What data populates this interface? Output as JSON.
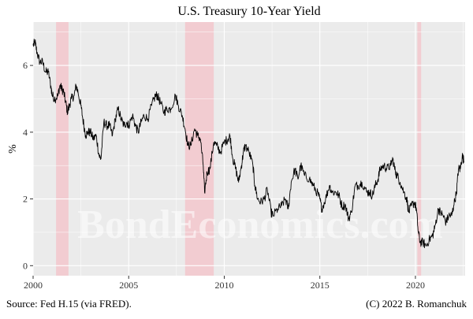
{
  "chart_data": {
    "type": "line",
    "title": "U.S. Treasury 10-Year Yield",
    "ylabel": "%",
    "xlabel": "",
    "xlim": [
      2000,
      2022.6
    ],
    "ylim": [
      -0.3,
      7.3
    ],
    "x_ticks": [
      2000,
      2005,
      2010,
      2015,
      2020
    ],
    "y_ticks": [
      0,
      2,
      4,
      6
    ],
    "grid": true,
    "watermark": "BondEconomics.com",
    "recessions": [
      {
        "start": 2001.2,
        "end": 2001.85
      },
      {
        "start": 2007.95,
        "end": 2009.45
      },
      {
        "start": 2020.1,
        "end": 2020.3
      }
    ],
    "series": [
      {
        "color": "#000000",
        "points": [
          [
            2000.0,
            6.6
          ],
          [
            2000.1,
            6.7
          ],
          [
            2000.2,
            6.4
          ],
          [
            2000.35,
            6.1
          ],
          [
            2000.5,
            6.1
          ],
          [
            2000.65,
            5.8
          ],
          [
            2000.8,
            5.8
          ],
          [
            2000.95,
            5.3
          ],
          [
            2001.0,
            5.1
          ],
          [
            2001.15,
            5.0
          ],
          [
            2001.3,
            5.1
          ],
          [
            2001.4,
            5.4
          ],
          [
            2001.5,
            5.3
          ],
          [
            2001.6,
            5.2
          ],
          [
            2001.7,
            4.9
          ],
          [
            2001.8,
            4.6
          ],
          [
            2001.9,
            4.8
          ],
          [
            2002.0,
            5.0
          ],
          [
            2002.15,
            5.1
          ],
          [
            2002.25,
            5.4
          ],
          [
            2002.35,
            5.2
          ],
          [
            2002.5,
            4.8
          ],
          [
            2002.6,
            4.4
          ],
          [
            2002.75,
            3.9
          ],
          [
            2002.85,
            4.0
          ],
          [
            2003.0,
            4.0
          ],
          [
            2003.15,
            3.8
          ],
          [
            2003.3,
            3.9
          ],
          [
            2003.45,
            3.3
          ],
          [
            2003.55,
            3.2
          ],
          [
            2003.7,
            4.3
          ],
          [
            2003.85,
            4.2
          ],
          [
            2004.0,
            4.2
          ],
          [
            2004.15,
            3.9
          ],
          [
            2004.3,
            4.4
          ],
          [
            2004.45,
            4.7
          ],
          [
            2004.6,
            4.4
          ],
          [
            2004.75,
            4.2
          ],
          [
            2004.9,
            4.3
          ],
          [
            2005.0,
            4.2
          ],
          [
            2005.2,
            4.5
          ],
          [
            2005.35,
            4.2
          ],
          [
            2005.5,
            4.0
          ],
          [
            2005.65,
            4.3
          ],
          [
            2005.8,
            4.5
          ],
          [
            2006.0,
            4.4
          ],
          [
            2006.2,
            4.8
          ],
          [
            2006.4,
            5.1
          ],
          [
            2006.5,
            5.1
          ],
          [
            2006.65,
            4.9
          ],
          [
            2006.85,
            4.6
          ],
          [
            2007.0,
            4.7
          ],
          [
            2007.2,
            4.7
          ],
          [
            2007.45,
            5.1
          ],
          [
            2007.6,
            4.8
          ],
          [
            2007.8,
            4.5
          ],
          [
            2007.95,
            4.1
          ],
          [
            2008.1,
            3.6
          ],
          [
            2008.25,
            3.6
          ],
          [
            2008.45,
            4.1
          ],
          [
            2008.6,
            3.9
          ],
          [
            2008.75,
            3.8
          ],
          [
            2008.9,
            3.0
          ],
          [
            2008.97,
            2.2
          ],
          [
            2009.1,
            2.8
          ],
          [
            2009.25,
            2.9
          ],
          [
            2009.45,
            3.7
          ],
          [
            2009.6,
            3.6
          ],
          [
            2009.8,
            3.4
          ],
          [
            2010.0,
            3.7
          ],
          [
            2010.2,
            3.8
          ],
          [
            2010.3,
            3.9
          ],
          [
            2010.45,
            3.2
          ],
          [
            2010.6,
            2.9
          ],
          [
            2010.75,
            2.5
          ],
          [
            2010.9,
            3.0
          ],
          [
            2011.0,
            3.4
          ],
          [
            2011.1,
            3.6
          ],
          [
            2011.3,
            3.4
          ],
          [
            2011.5,
            3.0
          ],
          [
            2011.6,
            2.4
          ],
          [
            2011.75,
            2.0
          ],
          [
            2011.9,
            1.9
          ],
          [
            2012.1,
            2.0
          ],
          [
            2012.25,
            2.3
          ],
          [
            2012.45,
            1.6
          ],
          [
            2012.55,
            1.5
          ],
          [
            2012.8,
            1.7
          ],
          [
            2013.0,
            1.8
          ],
          [
            2013.2,
            2.0
          ],
          [
            2013.35,
            1.7
          ],
          [
            2013.5,
            2.5
          ],
          [
            2013.7,
            2.9
          ],
          [
            2013.85,
            2.6
          ],
          [
            2014.0,
            3.0
          ],
          [
            2014.2,
            2.7
          ],
          [
            2014.45,
            2.6
          ],
          [
            2014.65,
            2.4
          ],
          [
            2014.85,
            2.2
          ],
          [
            2015.0,
            2.0
          ],
          [
            2015.1,
            1.7
          ],
          [
            2015.3,
            2.0
          ],
          [
            2015.5,
            2.4
          ],
          [
            2015.65,
            2.2
          ],
          [
            2015.85,
            2.2
          ],
          [
            2016.0,
            2.1
          ],
          [
            2016.15,
            1.8
          ],
          [
            2016.35,
            1.8
          ],
          [
            2016.5,
            1.4
          ],
          [
            2016.65,
            1.6
          ],
          [
            2016.85,
            2.4
          ],
          [
            2017.0,
            2.4
          ],
          [
            2017.2,
            2.5
          ],
          [
            2017.45,
            2.2
          ],
          [
            2017.6,
            2.2
          ],
          [
            2017.75,
            2.1
          ],
          [
            2017.9,
            2.4
          ],
          [
            2018.05,
            2.6
          ],
          [
            2018.15,
            2.9
          ],
          [
            2018.35,
            3.0
          ],
          [
            2018.5,
            2.9
          ],
          [
            2018.7,
            3.0
          ],
          [
            2018.82,
            3.2
          ],
          [
            2018.95,
            2.8
          ],
          [
            2019.05,
            2.7
          ],
          [
            2019.2,
            2.5
          ],
          [
            2019.4,
            2.2
          ],
          [
            2019.55,
            2.0
          ],
          [
            2019.65,
            1.6
          ],
          [
            2019.8,
            1.8
          ],
          [
            2019.95,
            1.9
          ],
          [
            2020.05,
            1.7
          ],
          [
            2020.15,
            1.0
          ],
          [
            2020.25,
            0.7
          ],
          [
            2020.4,
            0.7
          ],
          [
            2020.55,
            0.6
          ],
          [
            2020.75,
            0.8
          ],
          [
            2020.9,
            0.9
          ],
          [
            2021.0,
            1.1
          ],
          [
            2021.2,
            1.7
          ],
          [
            2021.3,
            1.6
          ],
          [
            2021.45,
            1.5
          ],
          [
            2021.6,
            1.3
          ],
          [
            2021.75,
            1.5
          ],
          [
            2021.9,
            1.5
          ],
          [
            2022.0,
            1.8
          ],
          [
            2022.15,
            2.2
          ],
          [
            2022.25,
            2.9
          ],
          [
            2022.35,
            2.9
          ],
          [
            2022.45,
            3.3
          ],
          [
            2022.55,
            3.1
          ]
        ]
      }
    ]
  },
  "footer": {
    "source": "Source: Fed H.15 (via FRED).",
    "credit": "(C) 2022 B. Romanchuk"
  }
}
